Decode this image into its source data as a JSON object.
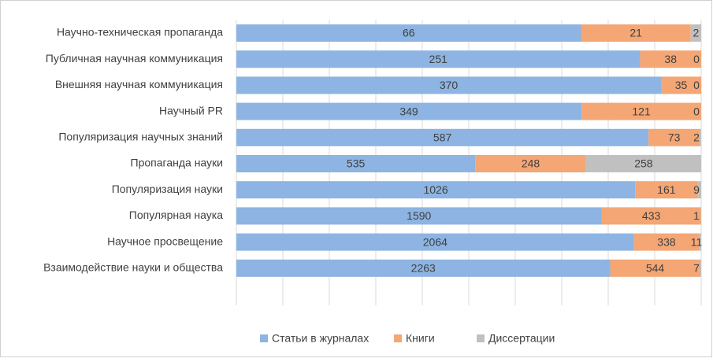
{
  "chart_data": {
    "type": "bar",
    "orientation": "horizontal",
    "stacking": "percent",
    "categories": [
      "Научно-техническая пропаганда",
      "Публичная научная коммуникация",
      "Внешняя научная коммуникация",
      "Научный PR",
      "Популяризация научных знаний",
      "Пропаганда науки",
      "Популяризация науки",
      "Популярная наука",
      "Научное просвещение",
      "Взаимодействие науки и общества"
    ],
    "series": [
      {
        "name": "Статьи в журналах",
        "color": "#8db4e2",
        "values": [
          66,
          251,
          370,
          349,
          587,
          535,
          1026,
          1590,
          2064,
          2263
        ]
      },
      {
        "name": "Книги",
        "color": "#f4a674",
        "values": [
          21,
          38,
          35,
          121,
          73,
          248,
          161,
          433,
          338,
          544
        ]
      },
      {
        "name": "Диссертации",
        "color": "#c0c0c0",
        "values": [
          2,
          0,
          0,
          0,
          2,
          258,
          9,
          1,
          11,
          7
        ]
      }
    ],
    "xlim": [
      0,
      100
    ],
    "xticks": [
      0,
      10,
      20,
      30,
      40,
      50,
      60,
      70,
      80,
      90,
      100
    ],
    "grid": true,
    "legend": "bottom"
  }
}
